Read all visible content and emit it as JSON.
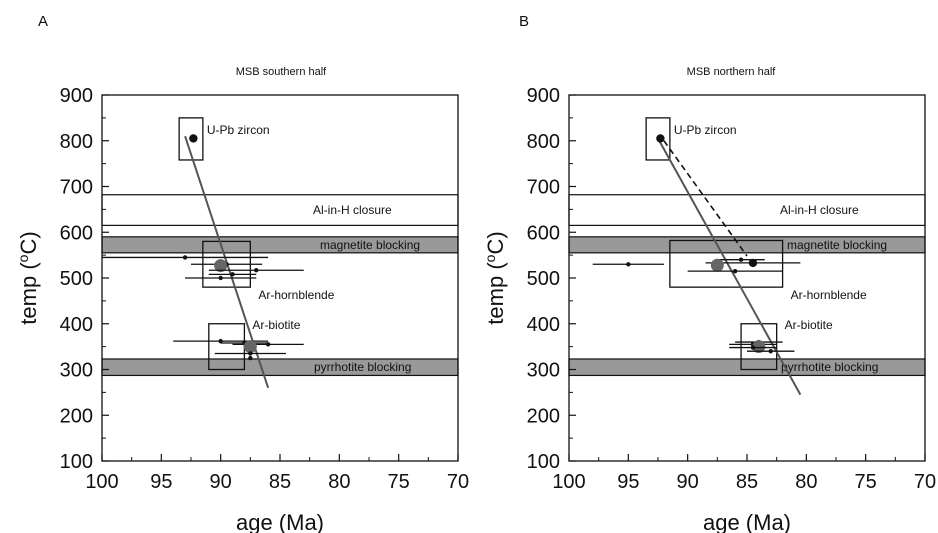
{
  "chart_data": [
    {
      "panel": "A",
      "title": "MSB southern half",
      "type": "scatter",
      "xlabel": "age (Ma)",
      "ylabel_main": "temp (",
      "ylabel_sup": "o",
      "ylabel_end": "C)",
      "xlim": [
        100,
        70
      ],
      "ylim": [
        100,
        900
      ],
      "xticks": [
        100,
        95,
        90,
        85,
        80,
        75,
        70
      ],
      "yticks": [
        100,
        200,
        300,
        400,
        500,
        600,
        700,
        800,
        900
      ],
      "bands": [
        {
          "label": "Al-in-H closure",
          "ymin": 615,
          "ymax": 682,
          "fill": "#ffffff"
        },
        {
          "label": "magnetite blocking",
          "ymin": 555,
          "ymax": 590,
          "fill": "#999999"
        },
        {
          "label": "pyrrhotite blocking",
          "ymin": 287,
          "ymax": 323,
          "fill": "#999999"
        }
      ],
      "boxes": [
        {
          "label": "U-Pb zircon",
          "x1": 93.5,
          "x2": 91.5,
          "ymin": 758,
          "ymax": 850
        },
        {
          "label": "Ar-hornblende",
          "x1": 91.5,
          "x2": 87.5,
          "ymin": 480,
          "ymax": 580
        },
        {
          "label": "Ar-biotite",
          "x1": 91.0,
          "x2": 88.0,
          "ymin": 300,
          "ymax": 400
        }
      ],
      "trend": {
        "x1": 93.0,
        "y1": 810,
        "x2": 86.0,
        "y2": 260
      },
      "points": [
        {
          "x": 92.3,
          "y": 805,
          "xerr": 0,
          "size": "medium",
          "color": "#111111"
        },
        {
          "x": 93.0,
          "y": 545,
          "xerr": 7,
          "size": "small",
          "color": "#111111"
        },
        {
          "x": 89.5,
          "y": 530,
          "xerr": 3,
          "size": "small",
          "color": "#111111"
        },
        {
          "x": 90.0,
          "y": 527,
          "xerr": 0,
          "size": "large",
          "color": "#666666"
        },
        {
          "x": 87.0,
          "y": 517,
          "xerr": 4,
          "size": "small",
          "color": "#111111"
        },
        {
          "x": 89.0,
          "y": 508,
          "xerr": 2,
          "size": "small",
          "color": "#111111"
        },
        {
          "x": 90.0,
          "y": 500,
          "xerr": 3,
          "size": "small",
          "color": "#111111"
        },
        {
          "x": 90.0,
          "y": 362,
          "xerr": 4,
          "size": "small",
          "color": "#111111"
        },
        {
          "x": 88.0,
          "y": 358,
          "xerr": 2,
          "size": "small",
          "color": "#111111"
        },
        {
          "x": 86.0,
          "y": 355,
          "xerr": 3,
          "size": "small",
          "color": "#111111"
        },
        {
          "x": 87.5,
          "y": 350,
          "xerr": 0,
          "size": "large",
          "color": "#666666"
        },
        {
          "x": 87.5,
          "y": 335,
          "xerr": 3,
          "size": "small",
          "color": "#111111"
        },
        {
          "x": 87.5,
          "y": 325,
          "xerr": 0,
          "size": "small",
          "color": "#111111"
        }
      ]
    },
    {
      "panel": "B",
      "title": "MSB northern half",
      "type": "scatter",
      "xlabel": "age (Ma)",
      "ylabel_main": "temp (",
      "ylabel_sup": "o",
      "ylabel_end": "C)",
      "xlim": [
        100,
        70
      ],
      "ylim": [
        100,
        900
      ],
      "xticks": [
        100,
        95,
        90,
        85,
        80,
        75,
        70
      ],
      "yticks": [
        100,
        200,
        300,
        400,
        500,
        600,
        700,
        800,
        900
      ],
      "bands": [
        {
          "label": "Al-in-H closure",
          "ymin": 615,
          "ymax": 682,
          "fill": "#ffffff"
        },
        {
          "label": "magnetite blocking",
          "ymin": 555,
          "ymax": 590,
          "fill": "#999999"
        },
        {
          "label": "pyrrhotite blocking",
          "ymin": 287,
          "ymax": 323,
          "fill": "#999999"
        }
      ],
      "boxes": [
        {
          "label": "U-Pb zircon",
          "x1": 93.5,
          "x2": 91.5,
          "ymin": 758,
          "ymax": 850
        },
        {
          "label": "Ar-hornblende",
          "x1": 91.5,
          "x2": 82.0,
          "ymin": 480,
          "ymax": 582
        },
        {
          "label": "Ar-biotite",
          "x1": 85.5,
          "x2": 82.5,
          "ymin": 300,
          "ymax": 400
        }
      ],
      "trend": {
        "x1": 92.5,
        "y1": 805,
        "x2": 80.5,
        "y2": 245
      },
      "trend_dashed": {
        "x1": 92.0,
        "y1": 800,
        "x2": 85.0,
        "y2": 548
      },
      "points": [
        {
          "x": 92.3,
          "y": 805,
          "xerr": 0,
          "size": "medium",
          "color": "#111111"
        },
        {
          "x": 85.5,
          "y": 540,
          "xerr": 2,
          "size": "small",
          "color": "#111111"
        },
        {
          "x": 84.5,
          "y": 533,
          "xerr": 4,
          "size": "medium",
          "color": "#111111"
        },
        {
          "x": 95.0,
          "y": 530,
          "xerr": 3,
          "size": "small",
          "color": "#111111"
        },
        {
          "x": 87.5,
          "y": 528,
          "xerr": 0,
          "size": "large",
          "color": "#666666"
        },
        {
          "x": 86.0,
          "y": 515,
          "xerr": 4,
          "size": "small",
          "color": "#111111"
        },
        {
          "x": 84.0,
          "y": 360,
          "xerr": 2,
          "size": "small",
          "color": "#111111"
        },
        {
          "x": 84.5,
          "y": 355,
          "xerr": 2,
          "size": "small",
          "color": "#111111"
        },
        {
          "x": 84.0,
          "y": 350,
          "xerr": 0,
          "size": "large",
          "color": "#666666"
        },
        {
          "x": 83.0,
          "y": 340,
          "xerr": 2,
          "size": "small",
          "color": "#111111"
        },
        {
          "x": 84.5,
          "y": 348,
          "xerr": 2,
          "size": "small",
          "color": "#111111"
        }
      ]
    }
  ]
}
